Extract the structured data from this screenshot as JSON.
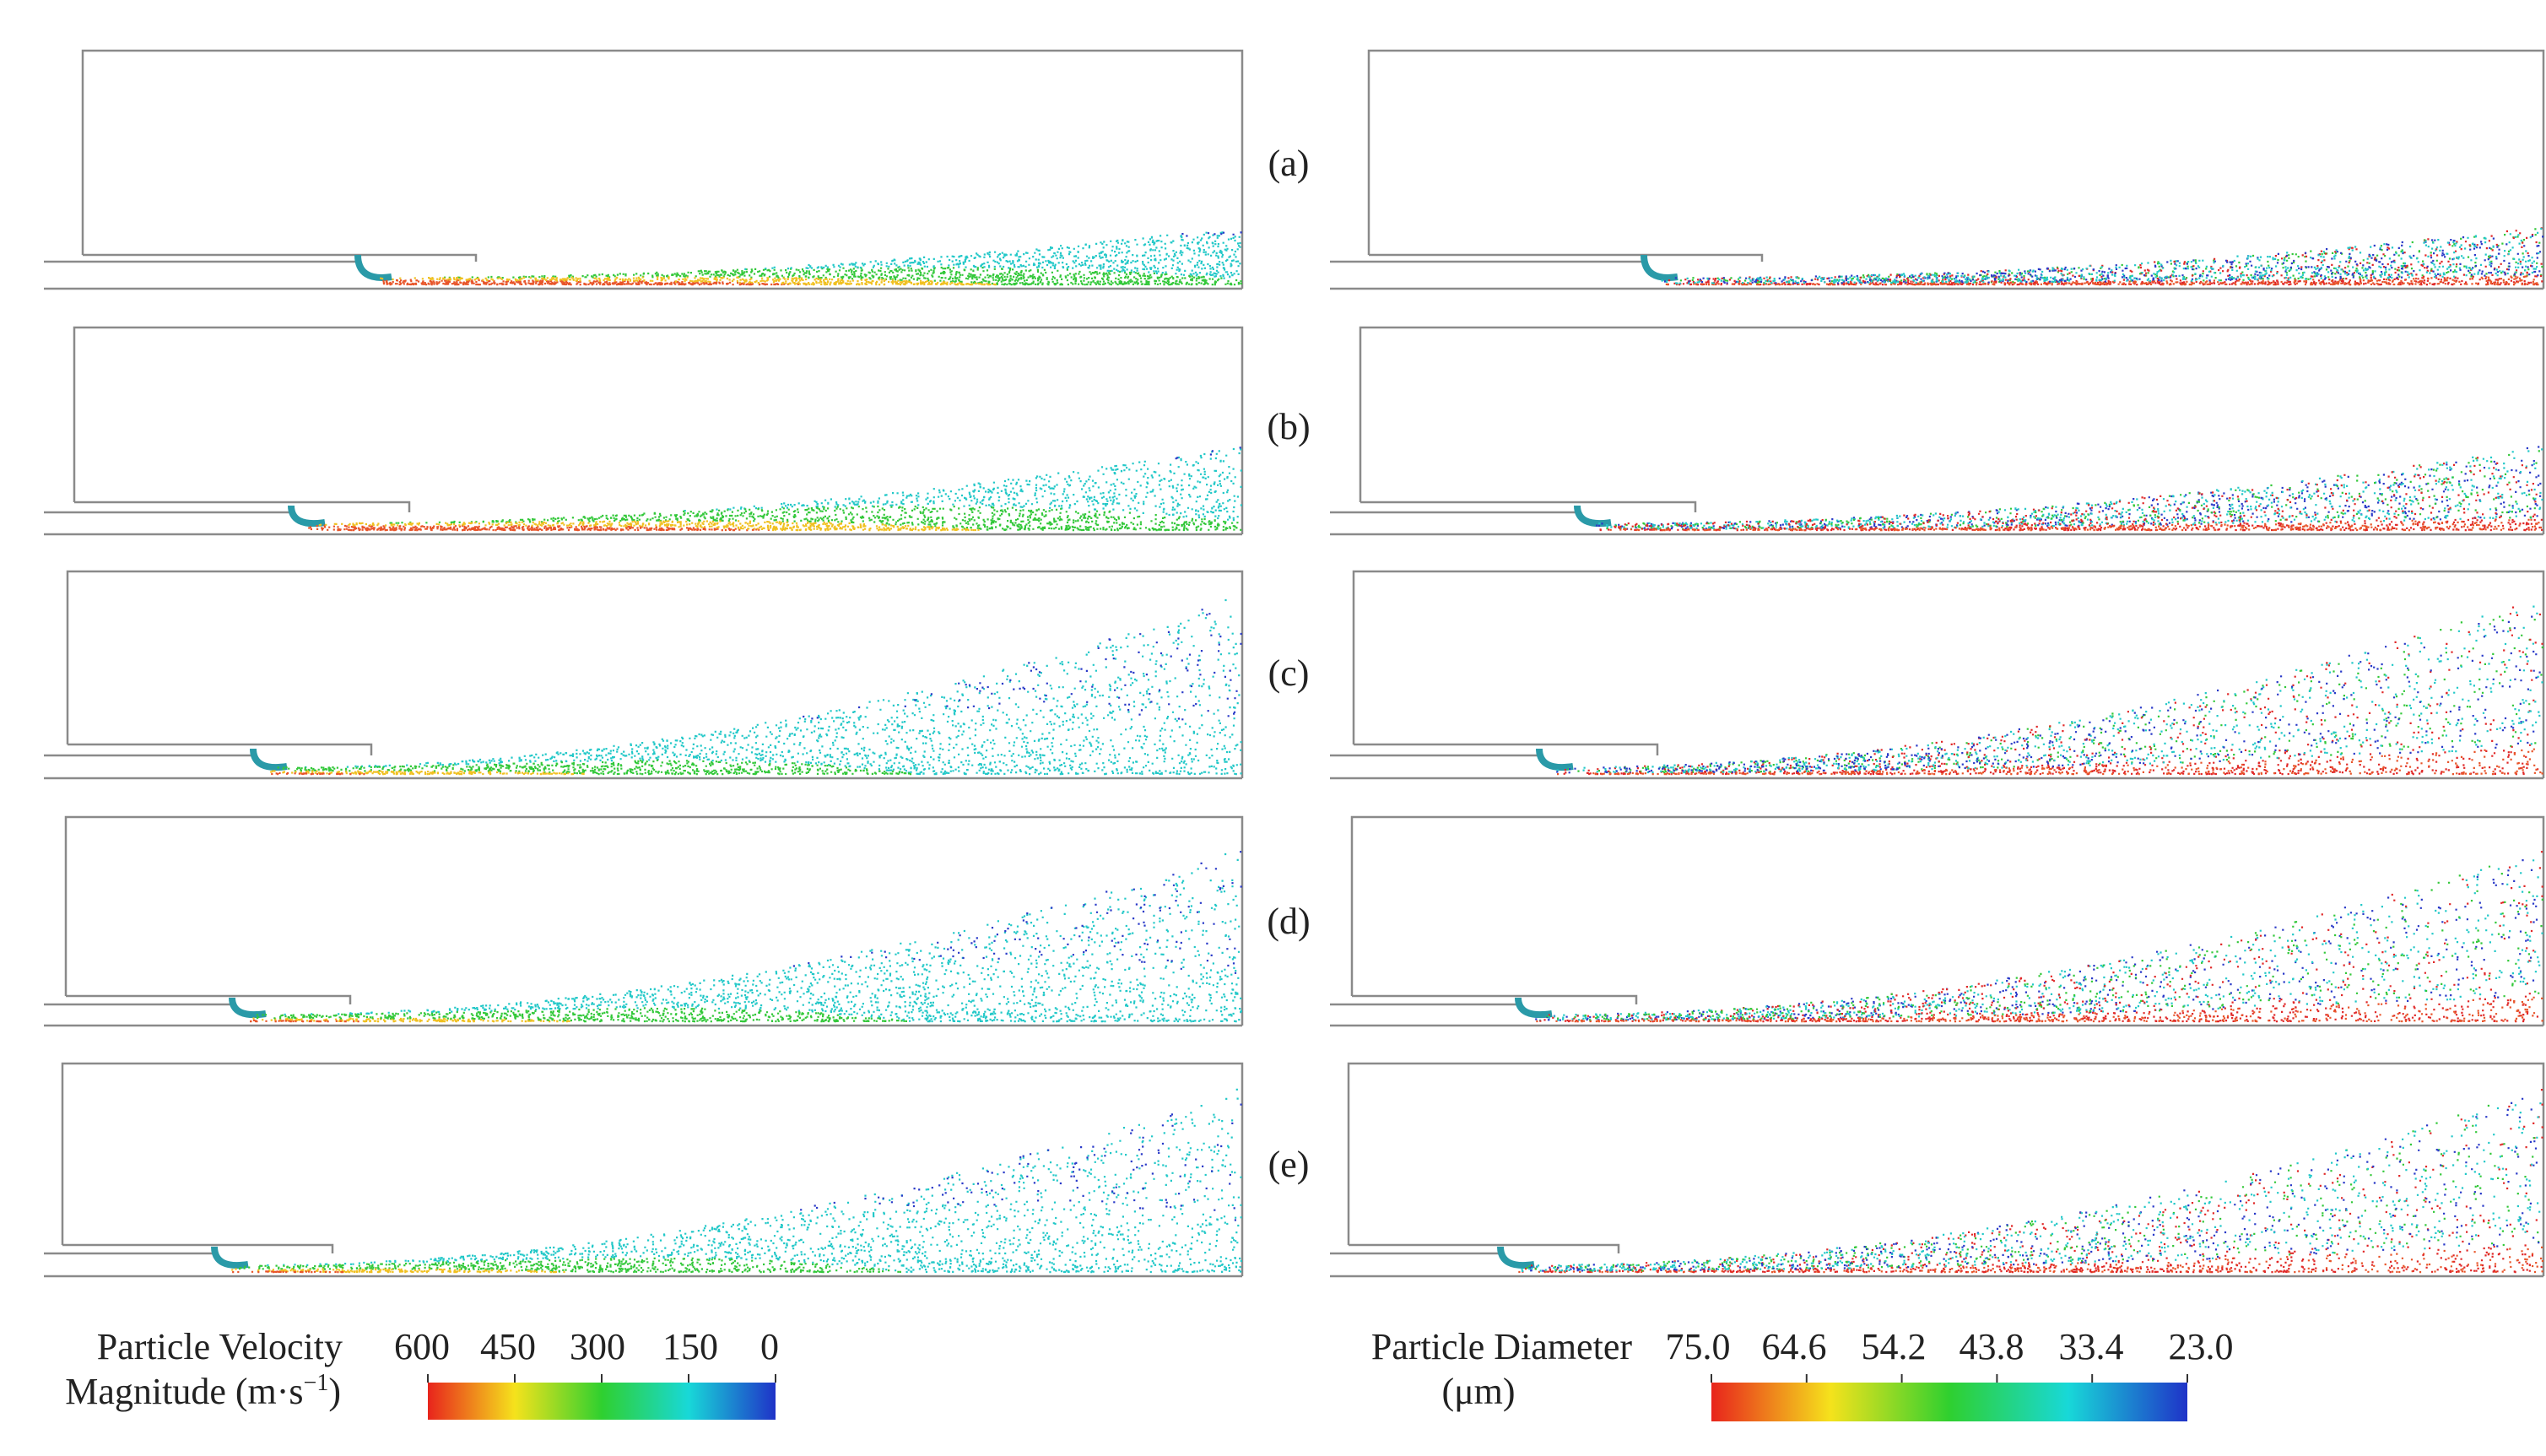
{
  "figure": {
    "panel_labels": [
      "(a)",
      "(b)",
      "(c)",
      "(d)",
      "(e)"
    ]
  },
  "colorbars": {
    "velocity": {
      "title_line1": "Particle Velocity",
      "title_line2": "Magnitude (m·s",
      "unit_exponent": "−1",
      "title_close": ")",
      "ticks": [
        "600",
        "450",
        "300",
        "150",
        "0"
      ],
      "colors": [
        "#e8241c",
        "#f5e21c",
        "#2fd02f",
        "#18d8d8",
        "#1f33c8"
      ]
    },
    "diameter": {
      "title_line1": "Particle Diameter",
      "title_line2": "(μm)",
      "ticks": [
        "75.0",
        "64.6",
        "54.2",
        "43.8",
        "33.4",
        "23.0"
      ],
      "colors": [
        "#e8241c",
        "#f5e21c",
        "#2fd02f",
        "#18d8d8",
        "#1f33c8"
      ]
    }
  },
  "plume_colors": {
    "core": "#e8552a",
    "mid": "#f0c020",
    "green": "#33c83a",
    "cyan": "#22c8c8",
    "blue": "#2a3ac8",
    "red": "#e02828",
    "nozzle": "#2a9aa8"
  }
}
